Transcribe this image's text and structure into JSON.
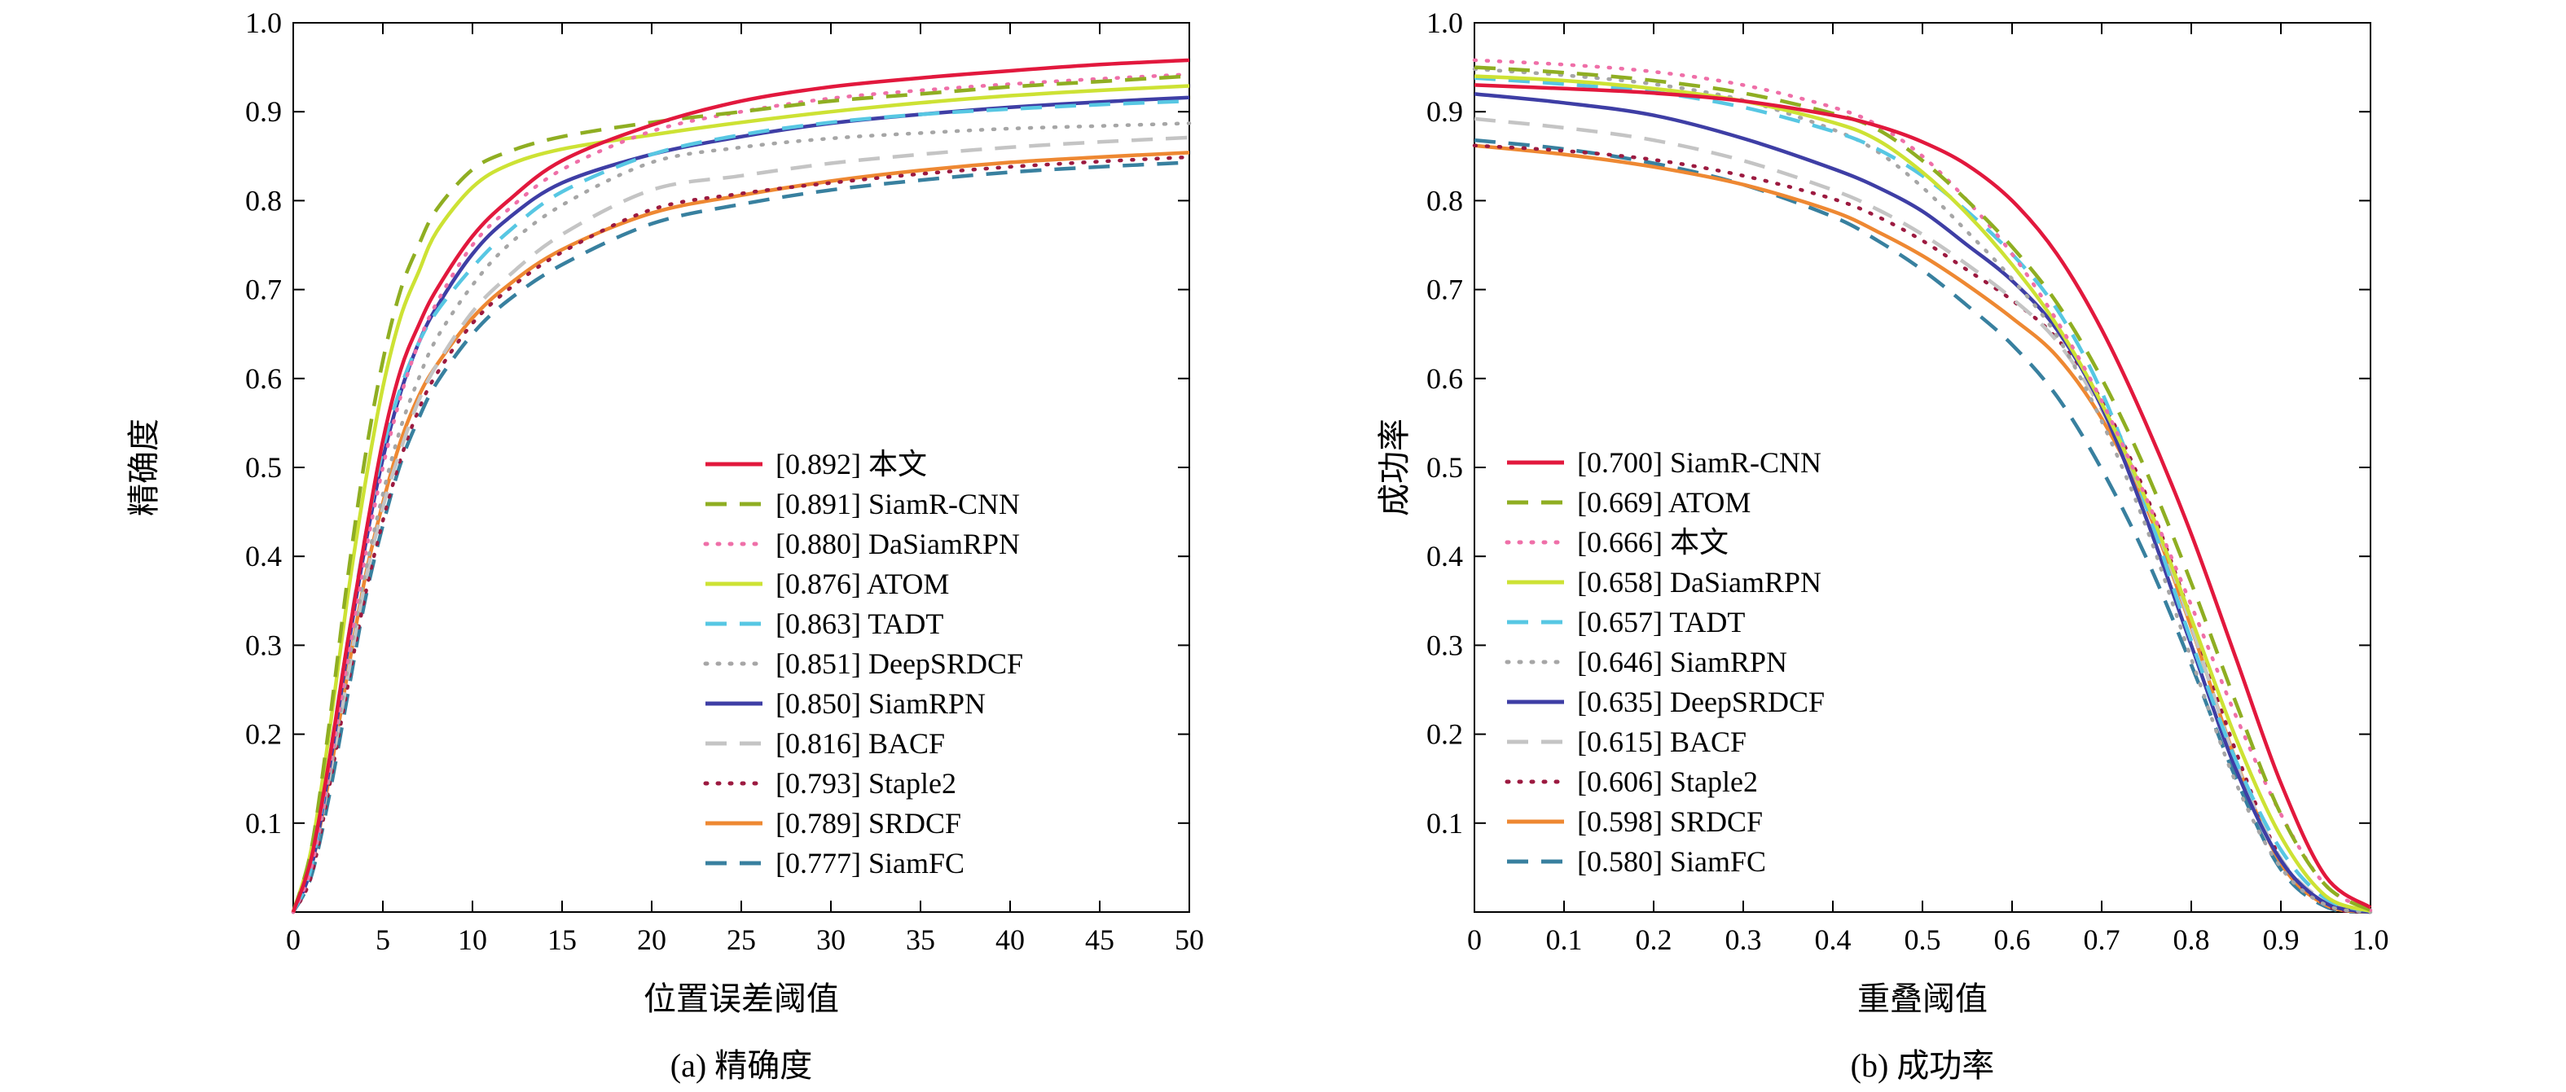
{
  "chart_data": [
    {
      "type": "line",
      "id": "precision-plot",
      "xlabel": "位置误差阈值",
      "ylabel": "精确度",
      "caption": "(a) 精确度",
      "xlim": [
        0,
        50
      ],
      "ylim": [
        0,
        1.0
      ],
      "grid": false,
      "legend_position": "lower-right-inside",
      "x_tick_values": [
        0,
        5,
        10,
        15,
        20,
        25,
        30,
        35,
        40,
        45,
        50
      ],
      "x_tick_labels": [
        "0",
        "5",
        "10",
        "15",
        "20",
        "25",
        "30",
        "35",
        "40",
        "45",
        "50"
      ],
      "y_tick_values": [
        0.1,
        0.2,
        0.3,
        0.4,
        0.5,
        0.6,
        0.7,
        0.8,
        0.9,
        1.0
      ],
      "y_tick_labels": [
        "0.1",
        "0.2",
        "0.3",
        "0.4",
        "0.5",
        "0.6",
        "0.7",
        "0.8",
        "0.9",
        "1.0"
      ],
      "x": [
        0,
        1,
        2,
        3,
        4,
        5,
        6,
        7,
        8,
        10,
        12,
        15,
        20,
        25,
        30,
        35,
        40,
        45,
        50
      ],
      "series": [
        {
          "name": "本文",
          "score": "0.892",
          "color": "#e2183d",
          "style": "solid",
          "values": [
            0,
            0.06,
            0.17,
            0.3,
            0.42,
            0.53,
            0.61,
            0.66,
            0.7,
            0.76,
            0.8,
            0.845,
            0.885,
            0.912,
            0.928,
            0.938,
            0.946,
            0.953,
            0.958
          ]
        },
        {
          "name": "SiamR-CNN",
          "score": "0.891",
          "color": "#8fae22",
          "style": "dashed",
          "values": [
            0,
            0.07,
            0.21,
            0.37,
            0.51,
            0.62,
            0.7,
            0.75,
            0.79,
            0.835,
            0.855,
            0.872,
            0.888,
            0.9,
            0.912,
            0.92,
            0.928,
            0.934,
            0.94
          ]
        },
        {
          "name": "DaSiamRPN",
          "score": "0.880",
          "color": "#ef6fa8",
          "style": "dotted",
          "values": [
            0,
            0.05,
            0.16,
            0.28,
            0.4,
            0.5,
            0.58,
            0.64,
            0.685,
            0.75,
            0.79,
            0.835,
            0.878,
            0.9,
            0.915,
            0.924,
            0.931,
            0.937,
            0.942
          ]
        },
        {
          "name": "ATOM",
          "score": "0.876",
          "color": "#cde234",
          "style": "solid",
          "values": [
            0,
            0.07,
            0.2,
            0.35,
            0.48,
            0.59,
            0.67,
            0.72,
            0.765,
            0.815,
            0.84,
            0.858,
            0.874,
            0.888,
            0.9,
            0.91,
            0.918,
            0.924,
            0.929
          ]
        },
        {
          "name": "TADT",
          "score": "0.863",
          "color": "#57c7e3",
          "style": "dashed",
          "values": [
            0,
            0.05,
            0.17,
            0.3,
            0.42,
            0.52,
            0.59,
            0.64,
            0.675,
            0.725,
            0.765,
            0.81,
            0.852,
            0.874,
            0.888,
            0.897,
            0.903,
            0.908,
            0.912
          ]
        },
        {
          "name": "DeepSRDCF",
          "score": "0.851",
          "color": "#a6a6a6",
          "style": "dotted",
          "values": [
            0,
            0.05,
            0.15,
            0.27,
            0.38,
            0.47,
            0.545,
            0.6,
            0.645,
            0.705,
            0.75,
            0.795,
            0.843,
            0.86,
            0.87,
            0.876,
            0.881,
            0.884,
            0.887
          ]
        },
        {
          "name": "SiamRPN",
          "score": "0.850",
          "color": "#3e3ea5",
          "style": "solid",
          "values": [
            0,
            0.05,
            0.16,
            0.29,
            0.41,
            0.51,
            0.585,
            0.64,
            0.68,
            0.74,
            0.78,
            0.82,
            0.852,
            0.872,
            0.887,
            0.897,
            0.905,
            0.911,
            0.916
          ]
        },
        {
          "name": "BACF",
          "score": "0.816",
          "color": "#c4c4c4",
          "style": "dashed",
          "values": [
            0,
            0.05,
            0.15,
            0.26,
            0.37,
            0.455,
            0.52,
            0.575,
            0.615,
            0.675,
            0.715,
            0.762,
            0.812,
            0.828,
            0.842,
            0.852,
            0.86,
            0.866,
            0.871
          ]
        },
        {
          "name": "Staple2",
          "score": "0.793",
          "color": "#9c1a40",
          "style": "dotted",
          "values": [
            0,
            0.04,
            0.14,
            0.25,
            0.355,
            0.44,
            0.51,
            0.565,
            0.605,
            0.662,
            0.7,
            0.742,
            0.79,
            0.808,
            0.82,
            0.83,
            0.838,
            0.844,
            0.849
          ]
        },
        {
          "name": "SRDCF",
          "score": "0.789",
          "color": "#ee8832",
          "style": "solid",
          "values": [
            0,
            0.05,
            0.15,
            0.265,
            0.375,
            0.46,
            0.53,
            0.58,
            0.615,
            0.668,
            0.705,
            0.745,
            0.786,
            0.806,
            0.822,
            0.834,
            0.843,
            0.849,
            0.854
          ]
        },
        {
          "name": "SiamFC",
          "score": "0.777",
          "color": "#38809f",
          "style": "dashed",
          "values": [
            0,
            0.04,
            0.13,
            0.24,
            0.35,
            0.435,
            0.505,
            0.555,
            0.595,
            0.65,
            0.688,
            0.728,
            0.774,
            0.796,
            0.812,
            0.823,
            0.832,
            0.838,
            0.843
          ]
        }
      ]
    },
    {
      "type": "line",
      "id": "success-plot",
      "xlabel": "重叠阈值",
      "ylabel": "成功率",
      "caption": "(b) 成功率",
      "xlim": [
        0,
        1.0
      ],
      "ylim": [
        0,
        1.0
      ],
      "grid": false,
      "legend_position": "lower-left-inside",
      "x_tick_values": [
        0,
        0.1,
        0.2,
        0.3,
        0.4,
        0.5,
        0.6,
        0.7,
        0.8,
        0.9,
        1.0
      ],
      "x_tick_labels": [
        "0",
        "0.1",
        "0.2",
        "0.3",
        "0.4",
        "0.5",
        "0.6",
        "0.7",
        "0.8",
        "0.9",
        "1.0"
      ],
      "y_tick_values": [
        0.1,
        0.2,
        0.3,
        0.4,
        0.5,
        0.6,
        0.7,
        0.8,
        0.9,
        1.0
      ],
      "y_tick_labels": [
        "0.1",
        "0.2",
        "0.3",
        "0.4",
        "0.5",
        "0.6",
        "0.7",
        "0.8",
        "0.9",
        "1.0"
      ],
      "x": [
        0,
        0.1,
        0.2,
        0.3,
        0.4,
        0.45,
        0.5,
        0.55,
        0.6,
        0.65,
        0.7,
        0.75,
        0.8,
        0.85,
        0.9,
        0.95,
        1.0
      ],
      "series": [
        {
          "name": "SiamR-CNN",
          "score": "0.700",
          "color": "#e2183d",
          "style": "solid",
          "values": [
            0.93,
            0.926,
            0.921,
            0.912,
            0.896,
            0.884,
            0.866,
            0.84,
            0.8,
            0.74,
            0.655,
            0.548,
            0.425,
            0.285,
            0.145,
            0.04,
            0.005
          ]
        },
        {
          "name": "ATOM",
          "score": "0.669",
          "color": "#8fae22",
          "style": "dashed",
          "values": [
            0.95,
            0.944,
            0.935,
            0.921,
            0.898,
            0.88,
            0.845,
            0.8,
            0.748,
            0.685,
            0.6,
            0.495,
            0.37,
            0.235,
            0.11,
            0.03,
            0.002
          ]
        },
        {
          "name": "本文",
          "score": "0.666",
          "color": "#ef6fa8",
          "style": "dotted",
          "values": [
            0.958,
            0.953,
            0.945,
            0.93,
            0.905,
            0.885,
            0.85,
            0.8,
            0.74,
            0.665,
            0.575,
            0.465,
            0.345,
            0.22,
            0.11,
            0.03,
            0.002
          ]
        },
        {
          "name": "DaSiamRPN",
          "score": "0.658",
          "color": "#cde234",
          "style": "solid",
          "values": [
            0.94,
            0.935,
            0.926,
            0.912,
            0.888,
            0.868,
            0.832,
            0.785,
            0.728,
            0.66,
            0.572,
            0.462,
            0.33,
            0.195,
            0.085,
            0.018,
            0.001
          ]
        },
        {
          "name": "TADT",
          "score": "0.657",
          "color": "#57c7e3",
          "style": "dashed",
          "values": [
            0.938,
            0.931,
            0.922,
            0.905,
            0.878,
            0.858,
            0.828,
            0.788,
            0.74,
            0.678,
            0.585,
            0.455,
            0.305,
            0.17,
            0.07,
            0.015,
            0.001
          ]
        },
        {
          "name": "SiamRPN",
          "score": "0.646",
          "color": "#a6a6a6",
          "style": "dotted",
          "values": [
            0.948,
            0.941,
            0.931,
            0.913,
            0.88,
            0.855,
            0.815,
            0.765,
            0.712,
            0.648,
            0.552,
            0.432,
            0.285,
            0.145,
            0.05,
            0.008,
            0.0
          ]
        },
        {
          "name": "DeepSRDCF",
          "score": "0.635",
          "color": "#3e3ea5",
          "style": "solid",
          "values": [
            0.92,
            0.91,
            0.896,
            0.87,
            0.836,
            0.815,
            0.788,
            0.75,
            0.71,
            0.655,
            0.568,
            0.442,
            0.3,
            0.16,
            0.058,
            0.01,
            0.0
          ]
        },
        {
          "name": "BACF",
          "score": "0.615",
          "color": "#c4c4c4",
          "style": "dashed",
          "values": [
            0.892,
            0.882,
            0.868,
            0.845,
            0.812,
            0.79,
            0.762,
            0.728,
            0.69,
            0.642,
            0.565,
            0.46,
            0.322,
            0.168,
            0.06,
            0.012,
            0.0
          ]
        },
        {
          "name": "Staple2",
          "score": "0.606",
          "color": "#9c1a40",
          "style": "dotted",
          "values": [
            0.862,
            0.856,
            0.846,
            0.828,
            0.802,
            0.782,
            0.755,
            0.722,
            0.688,
            0.645,
            0.575,
            0.468,
            0.33,
            0.18,
            0.06,
            0.008,
            0.0
          ]
        },
        {
          "name": "SRDCF",
          "score": "0.598",
          "color": "#ee8832",
          "style": "solid",
          "values": [
            0.862,
            0.852,
            0.838,
            0.818,
            0.788,
            0.765,
            0.738,
            0.705,
            0.668,
            0.625,
            0.555,
            0.455,
            0.32,
            0.17,
            0.055,
            0.008,
            0.0
          ]
        },
        {
          "name": "SiamFC",
          "score": "0.580",
          "color": "#38809f",
          "style": "dashed",
          "values": [
            0.868,
            0.858,
            0.842,
            0.818,
            0.782,
            0.755,
            0.722,
            0.682,
            0.638,
            0.58,
            0.498,
            0.398,
            0.278,
            0.15,
            0.048,
            0.006,
            0.0
          ]
        }
      ]
    }
  ]
}
